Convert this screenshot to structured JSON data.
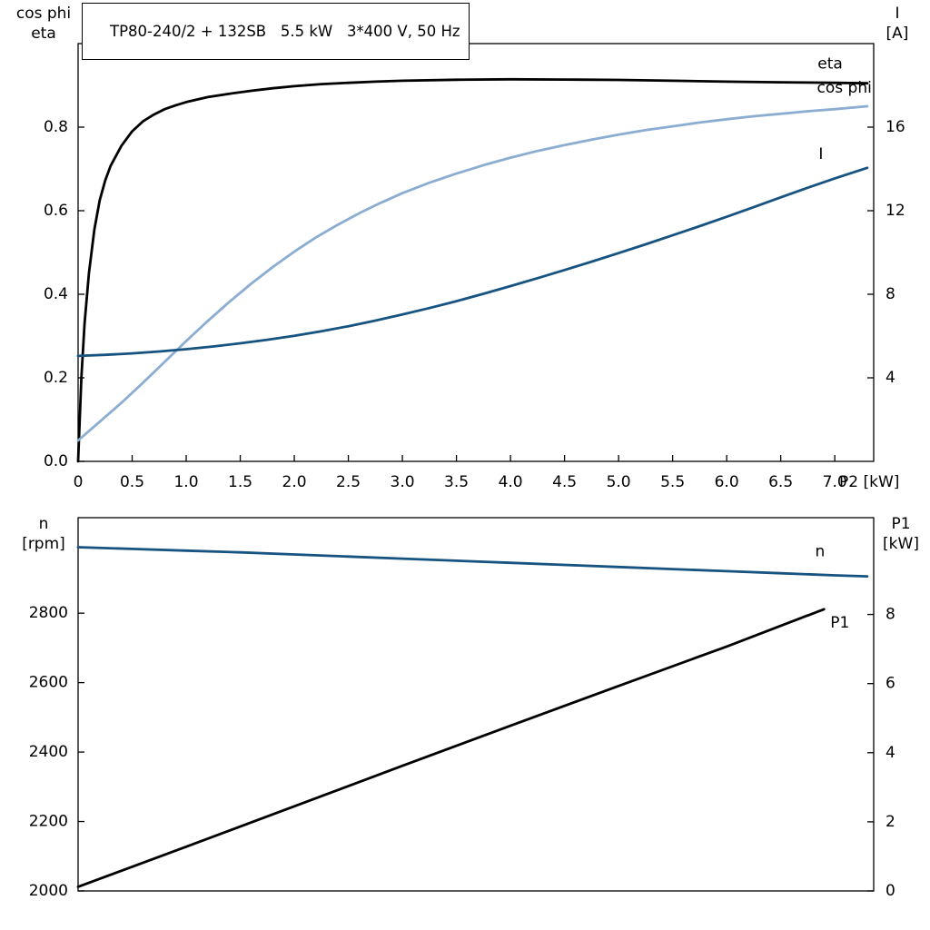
{
  "title": "TP80-240/2 + 132SB   5.5 kW   3*400 V, 50 Hz",
  "colors": {
    "axis": "#000000",
    "black": "#000000",
    "dark_blue": "#175380",
    "light_blue": "#8badd2"
  },
  "labels": {
    "top_left_line1": "cos phi",
    "top_left_line2": "eta",
    "top_right_line1": "I",
    "top_right_line2": "[A]",
    "x_axis_unit": "P2 [kW]",
    "bottom_left_line1": "n",
    "bottom_left_line2": "[rpm]",
    "bottom_right_line1": "P1",
    "bottom_right_line2": "[kW]"
  },
  "chart_data": [
    {
      "name": "top-chart",
      "type": "line",
      "title": "TP80-240/2 + 132SB   5.5 kW   3*400 V, 50 Hz",
      "grid": false,
      "x_axis": {
        "label": "P2 [kW]",
        "min": 0,
        "max": 7.36,
        "ticks": [
          0,
          0.5,
          1,
          1.5,
          2,
          2.5,
          3,
          3.5,
          4,
          4.5,
          5,
          5.5,
          6,
          6.5,
          7
        ],
        "tick_labels": [
          "0",
          "0.5",
          "1.0",
          "1.5",
          "2.0",
          "2.5",
          "3.0",
          "3.5",
          "4.0",
          "4.5",
          "5.0",
          "5.5",
          "6.0",
          "6.5",
          "7.0"
        ]
      },
      "y_left": {
        "label": "cos phi / eta",
        "min": 0,
        "max": 1,
        "ticks": [
          0,
          0.2,
          0.4,
          0.6,
          0.8
        ],
        "tick_labels": [
          "0.0",
          "0.2",
          "0.4",
          "0.6",
          "0.8"
        ]
      },
      "y_right": {
        "label": "I [A]",
        "min": 0,
        "max": 20,
        "ticks": [
          4,
          8,
          12,
          16
        ],
        "tick_labels": [
          "4",
          "8",
          "12",
          "16"
        ]
      },
      "series": [
        {
          "name": "eta",
          "label": "eta",
          "axis": "left",
          "color": "#000000",
          "width": 2.8,
          "label_offset": {
            "dx": -27,
            "dy": -21,
            "anchor": "end"
          },
          "points": [
            [
              0,
              0
            ],
            [
              0.03,
              0.2
            ],
            [
              0.06,
              0.33
            ],
            [
              0.1,
              0.45
            ],
            [
              0.15,
              0.555
            ],
            [
              0.2,
              0.625
            ],
            [
              0.25,
              0.672
            ],
            [
              0.3,
              0.707
            ],
            [
              0.4,
              0.755
            ],
            [
              0.5,
              0.79
            ],
            [
              0.6,
              0.814
            ],
            [
              0.7,
              0.83
            ],
            [
              0.8,
              0.843
            ],
            [
              0.9,
              0.852
            ],
            [
              1,
              0.86
            ],
            [
              1.2,
              0.872
            ],
            [
              1.4,
              0.88
            ],
            [
              1.6,
              0.887
            ],
            [
              1.8,
              0.893
            ],
            [
              2,
              0.898
            ],
            [
              2.25,
              0.903
            ],
            [
              2.5,
              0.906
            ],
            [
              2.75,
              0.909
            ],
            [
              3,
              0.911
            ],
            [
              3.5,
              0.9135
            ],
            [
              4,
              0.9145
            ],
            [
              4.5,
              0.914
            ],
            [
              5,
              0.913
            ],
            [
              5.5,
              0.911
            ],
            [
              6,
              0.909
            ],
            [
              6.5,
              0.9075
            ],
            [
              7,
              0.906
            ],
            [
              7.3,
              0.905
            ]
          ]
        },
        {
          "name": "cos-phi",
          "label": "cos phi",
          "axis": "left",
          "color": "#8badd2",
          "width": 2.8,
          "label_offset": {
            "dx": 5,
            "dy": -20,
            "anchor": "end"
          },
          "points": [
            [
              0,
              0.05
            ],
            [
              0.2,
              0.095
            ],
            [
              0.4,
              0.14
            ],
            [
              0.6,
              0.188
            ],
            [
              0.8,
              0.238
            ],
            [
              1,
              0.288
            ],
            [
              1.2,
              0.336
            ],
            [
              1.4,
              0.382
            ],
            [
              1.6,
              0.425
            ],
            [
              1.8,
              0.465
            ],
            [
              2,
              0.502
            ],
            [
              2.2,
              0.536
            ],
            [
              2.4,
              0.566
            ],
            [
              2.6,
              0.594
            ],
            [
              2.8,
              0.619
            ],
            [
              3,
              0.642
            ],
            [
              3.25,
              0.667
            ],
            [
              3.5,
              0.689
            ],
            [
              3.75,
              0.709
            ],
            [
              4,
              0.727
            ],
            [
              4.25,
              0.743
            ],
            [
              4.5,
              0.757
            ],
            [
              4.75,
              0.77
            ],
            [
              5,
              0.782
            ],
            [
              5.25,
              0.793
            ],
            [
              5.5,
              0.802
            ],
            [
              5.75,
              0.811
            ],
            [
              6,
              0.819
            ],
            [
              6.25,
              0.826
            ],
            [
              6.5,
              0.832
            ],
            [
              6.75,
              0.838
            ],
            [
              7,
              0.843
            ],
            [
              7.3,
              0.85
            ]
          ]
        },
        {
          "name": "I",
          "label": "I",
          "axis": "right",
          "color": "#175380",
          "width": 2.8,
          "label_offset": {
            "dx": -51,
            "dy": -15,
            "anchor": "middle"
          },
          "points": [
            [
              0,
              5.05
            ],
            [
              0.25,
              5.1
            ],
            [
              0.5,
              5.17
            ],
            [
              0.75,
              5.26
            ],
            [
              1,
              5.37
            ],
            [
              1.25,
              5.5
            ],
            [
              1.5,
              5.65
            ],
            [
              1.75,
              5.82
            ],
            [
              2,
              6.01
            ],
            [
              2.25,
              6.23
            ],
            [
              2.5,
              6.47
            ],
            [
              2.75,
              6.74
            ],
            [
              3,
              7.03
            ],
            [
              3.25,
              7.34
            ],
            [
              3.5,
              7.67
            ],
            [
              3.75,
              8.02
            ],
            [
              4,
              8.39
            ],
            [
              4.25,
              8.77
            ],
            [
              4.5,
              9.16
            ],
            [
              4.75,
              9.56
            ],
            [
              5,
              9.97
            ],
            [
              5.25,
              10.39
            ],
            [
              5.5,
              10.82
            ],
            [
              5.75,
              11.26
            ],
            [
              6,
              11.71
            ],
            [
              6.25,
              12.17
            ],
            [
              6.5,
              12.64
            ],
            [
              6.75,
              13.1
            ],
            [
              7,
              13.55
            ],
            [
              7.3,
              14.05
            ]
          ]
        }
      ]
    },
    {
      "name": "bottom-chart",
      "type": "line",
      "grid": false,
      "x_axis": {
        "label": "",
        "min": 0,
        "max": 7.36,
        "ticks": [],
        "tick_labels": []
      },
      "y_left": {
        "label": "n [rpm]",
        "min": 2000,
        "max": 3075,
        "ticks": [
          2000,
          2200,
          2400,
          2600,
          2800
        ],
        "tick_labels": [
          "2000",
          "2200",
          "2400",
          "2600",
          "2800"
        ]
      },
      "y_right": {
        "label": "P1 [kW]",
        "min": 0,
        "max": 10.8,
        "ticks": [
          0,
          2,
          4,
          6,
          8
        ],
        "tick_labels": [
          "0",
          "2",
          "4",
          "6",
          "8"
        ]
      },
      "series": [
        {
          "name": "n",
          "label": "n",
          "axis": "left",
          "color": "#175380",
          "width": 2.8,
          "label_offset": {
            "dx": -52,
            "dy": -27,
            "anchor": "middle"
          },
          "points": [
            [
              0,
              2990
            ],
            [
              0.5,
              2985
            ],
            [
              1,
              2980
            ],
            [
              1.5,
              2975
            ],
            [
              2,
              2969
            ],
            [
              2.5,
              2963
            ],
            [
              3,
              2957
            ],
            [
              3.5,
              2951
            ],
            [
              4,
              2945
            ],
            [
              4.5,
              2939
            ],
            [
              5,
              2933
            ],
            [
              5.5,
              2927
            ],
            [
              6,
              2921
            ],
            [
              6.5,
              2915
            ],
            [
              7,
              2909
            ],
            [
              7.3,
              2906
            ]
          ]
        },
        {
          "name": "P1",
          "label": "P1",
          "axis": "right",
          "color": "#000000",
          "width": 2.8,
          "label_offset": {
            "dx": 7,
            "dy": 15,
            "anchor": "start"
          },
          "points": [
            [
              0,
              0.12
            ],
            [
              1,
              1.28
            ],
            [
              2,
              2.45
            ],
            [
              3,
              3.62
            ],
            [
              4,
              4.78
            ],
            [
              5,
              5.93
            ],
            [
              6,
              7.07
            ],
            [
              6.9,
              8.15
            ]
          ]
        }
      ]
    }
  ]
}
